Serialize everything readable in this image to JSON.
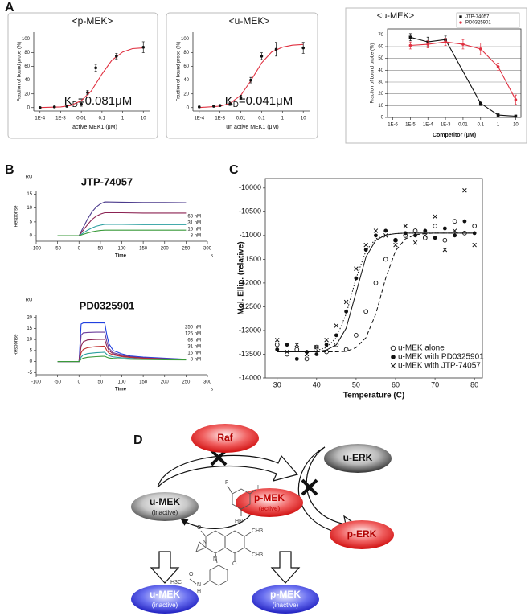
{
  "panels": [
    "A",
    "B",
    "C",
    "D"
  ],
  "chart_data": [
    {
      "type": "scatter",
      "title": "<p-MEK>",
      "x_label": "active MEK1 (μM)",
      "y_label": "Fraction of bound probe (%)",
      "annotation": {
        "main": "K",
        "sub": "D",
        "tail": "=0.081μM"
      },
      "xscale": "log",
      "xlim": [
        5e-05,
        20
      ],
      "xticks": [
        {
          "value": 0.0001,
          "label": "1E-4"
        },
        {
          "value": 0.001,
          "label": "1E-3"
        },
        0.01,
        0.1,
        1,
        10
      ],
      "ylim": [
        -5,
        110
      ],
      "yticks": [
        0,
        20,
        40,
        60,
        80,
        100
      ],
      "grid": false,
      "series": [
        {
          "color": "#e03040",
          "line": true,
          "x": [
            0.0001,
            0.001,
            0.003,
            0.01,
            0.03,
            0.1,
            0.3,
            1,
            3,
            10
          ],
          "values": [
            0,
            1,
            3,
            10,
            24,
            49,
            69,
            81,
            86,
            87
          ]
        },
        {
          "color": "#111111",
          "marker": "filled-circle",
          "x": [
            0.0001,
            0.0005,
            0.002,
            0.01,
            0.02,
            0.05,
            0.5,
            10
          ],
          "values": [
            0,
            1,
            2,
            5,
            22,
            58,
            75,
            88
          ],
          "errors": [
            1,
            1,
            1,
            3,
            3,
            5,
            4,
            8
          ]
        }
      ]
    },
    {
      "type": "scatter",
      "title": "<u-MEK>",
      "x_label": "un active MEK1 (μM)",
      "y_label": "Fraction of bound probe (%)",
      "annotation": {
        "main": "K",
        "sub": "D",
        "tail": "=0.041μM"
      },
      "xscale": "log",
      "xlim": [
        5e-05,
        20
      ],
      "xticks": [
        {
          "value": 0.0001,
          "label": "1E-4"
        },
        {
          "value": 0.001,
          "label": "1E-3"
        },
        0.01,
        0.1,
        1,
        10
      ],
      "ylim": [
        -5,
        110
      ],
      "yticks": [
        0,
        20,
        40,
        60,
        80,
        100
      ],
      "grid": false,
      "series": [
        {
          "color": "#e03040",
          "line": true,
          "x": [
            0.0001,
            0.001,
            0.003,
            0.01,
            0.03,
            0.1,
            0.3,
            1,
            3,
            10
          ],
          "values": [
            0,
            2,
            6,
            18,
            39,
            65,
            81,
            88,
            91,
            92
          ]
        },
        {
          "color": "#111111",
          "marker": "filled-circle",
          "x": [
            0.0001,
            0.0005,
            0.001,
            0.003,
            0.01,
            0.03,
            0.1,
            0.5,
            10
          ],
          "values": [
            1,
            2,
            3,
            5,
            15,
            40,
            75,
            85,
            87
          ],
          "errors": [
            1,
            1,
            1,
            2,
            3,
            4,
            5,
            10,
            8
          ]
        }
      ]
    },
    {
      "type": "scatter",
      "title": "<u-MEK>",
      "x_label": "Competitor (μM)",
      "y_label": "Fraction of bound probe (%)",
      "xscale": "log",
      "xlim": [
        5e-07,
        20
      ],
      "xticks": [
        {
          "value": 1e-06,
          "label": "1E-6"
        },
        {
          "value": 1e-05,
          "label": "1E-5"
        },
        {
          "value": 0.0001,
          "label": "1E-4"
        },
        {
          "value": 0.001,
          "label": "1E-3"
        },
        0.01,
        0.1,
        1,
        10
      ],
      "ylim": [
        0,
        75
      ],
      "yticks": [
        0,
        10,
        20,
        30,
        40,
        50,
        60,
        70
      ],
      "grid": true,
      "legend": "upper right",
      "series": [
        {
          "name": "JTP-74057",
          "color": "#111111",
          "marker": "square",
          "line": true,
          "x": [
            1e-05,
            0.0001,
            0.001,
            0.1,
            1,
            10
          ],
          "values": [
            68,
            64,
            66,
            12,
            2,
            1
          ],
          "errors": [
            3,
            4,
            3,
            2,
            1,
            1
          ]
        },
        {
          "name": "PD0325901",
          "color": "#e03040",
          "marker": "filled-circle",
          "line": true,
          "x": [
            1e-05,
            0.0001,
            0.001,
            0.01,
            0.1,
            1,
            10
          ],
          "values": [
            61,
            62,
            64,
            62,
            58,
            43,
            15
          ],
          "errors": [
            3,
            3,
            3,
            4,
            5,
            3,
            4
          ]
        }
      ]
    },
    {
      "type": "line",
      "title": "JTP-74057",
      "unit_label": "RU",
      "x_label": "Time",
      "x_unit": "s",
      "y_label": "Response",
      "xlim": [
        -100,
        300
      ],
      "xticks": [
        -100,
        -50,
        0,
        50,
        100,
        150,
        200,
        250,
        300
      ],
      "ylim": [
        -2,
        16
      ],
      "yticks": [
        0,
        5,
        10,
        15
      ],
      "legend": "upper right",
      "x": [
        -50,
        0,
        10,
        20,
        30,
        40,
        50,
        60,
        100,
        150,
        200,
        250
      ],
      "series": [
        {
          "name": "63 nM",
          "color": "#4b3a8c",
          "line": true,
          "values": [
            0,
            0,
            3,
            6,
            8.5,
            10.3,
            11.5,
            12.2,
            12.1,
            12,
            12,
            11.9
          ]
        },
        {
          "name": "31 nM",
          "color": "#8b2252",
          "line": true,
          "values": [
            0,
            0,
            2,
            4,
            5.8,
            7,
            7.8,
            8.3,
            8.3,
            8.2,
            8.2,
            8.2
          ]
        },
        {
          "name": "16 nM",
          "color": "#2a9fa0",
          "line": true,
          "values": [
            0,
            0,
            1,
            2,
            2.8,
            3.4,
            3.8,
            4.1,
            4.1,
            4,
            4,
            4
          ]
        },
        {
          "name": "8 nM",
          "color": "#3a9a3a",
          "line": true,
          "values": [
            0,
            0,
            0.5,
            1,
            1.4,
            1.7,
            1.9,
            2,
            2,
            2,
            2,
            2
          ]
        }
      ]
    },
    {
      "type": "line",
      "title": "PD0325901",
      "unit_label": "RU",
      "x_label": "Time",
      "x_unit": "s",
      "y_label": "Response",
      "xlim": [
        -100,
        300
      ],
      "xticks": [
        -100,
        -50,
        0,
        50,
        100,
        150,
        200,
        250,
        300
      ],
      "ylim": [
        -6,
        21
      ],
      "yticks": [
        -5,
        0,
        5,
        10,
        15,
        20
      ],
      "legend": "upper right",
      "x": [
        -50,
        0,
        5,
        10,
        20,
        40,
        60,
        65,
        70,
        80,
        100,
        120,
        150,
        200,
        250
      ],
      "series": [
        {
          "name": "250 nM",
          "color": "#2040e0",
          "line": true,
          "values": [
            0,
            0,
            17,
            17.5,
            17.5,
            17.5,
            17.5,
            12,
            8,
            5,
            3.5,
            2.5,
            2,
            1.5,
            1
          ]
        },
        {
          "name": "125 nM",
          "color": "#6a3d9a",
          "line": true,
          "values": [
            0,
            0,
            12,
            13,
            13.2,
            13.3,
            13.3,
            9,
            6,
            4,
            3,
            2.2,
            1.7,
            1.3,
            1
          ]
        },
        {
          "name": "63 nM",
          "color": "#8b2252",
          "line": true,
          "values": [
            0,
            0,
            7,
            9,
            9.8,
            10,
            10.1,
            7,
            5,
            3.5,
            2.5,
            2,
            1.6,
            1.2,
            1
          ]
        },
        {
          "name": "31 nM",
          "color": "#c03030",
          "line": true,
          "values": [
            0,
            0,
            4,
            5.5,
            6.3,
            6.8,
            7,
            5,
            3.8,
            3,
            2.2,
            1.8,
            1.4,
            1.1,
            0.9
          ]
        },
        {
          "name": "16 nM",
          "color": "#2a9fa0",
          "line": true,
          "values": [
            0,
            0,
            2,
            3,
            3.6,
            4,
            4.2,
            3.2,
            2.6,
            2.1,
            1.7,
            1.4,
            1.1,
            0.9,
            0.8
          ]
        },
        {
          "name": "8 nM",
          "color": "#3a9a3a",
          "line": true,
          "values": [
            0,
            0,
            1,
            1.5,
            1.9,
            2.2,
            2.4,
            1.9,
            1.6,
            1.4,
            1.2,
            1,
            0.9,
            0.8,
            0.7
          ]
        }
      ]
    },
    {
      "type": "scatter",
      "x_label": "Temperature (C)",
      "y_label": "Mol. Ellip. (relative)",
      "xlim": [
        27,
        82
      ],
      "xticks": [
        30,
        40,
        50,
        60,
        70,
        80
      ],
      "ylim": [
        -14000,
        -9800
      ],
      "yticks": [
        -10000,
        -10500,
        -11000,
        -11500,
        -12000,
        -12500,
        -13000,
        -13500,
        -14000
      ],
      "legend": "lower right",
      "x": [
        30,
        32.5,
        35,
        37.5,
        40,
        42.5,
        45,
        47.5,
        50,
        52.5,
        55,
        57.5,
        60,
        62.5,
        65,
        67.5,
        70,
        72.5,
        75,
        77.5,
        80
      ],
      "series": [
        {
          "name": "u-MEK alone",
          "color": "#111111",
          "marker": "open-circle",
          "values": [
            -13300,
            -13500,
            -13400,
            -13600,
            -13350,
            -13450,
            -13300,
            -13400,
            -13100,
            -12600,
            -12000,
            -11500,
            -11100,
            -11000,
            -10900,
            -11050,
            -10800,
            -11100,
            -10700,
            -10950,
            -10800
          ]
        },
        {
          "name": "u-MEK with PD0325901",
          "color": "#111111",
          "marker": "filled-circle",
          "values": [
            -13400,
            -13300,
            -13600,
            -13450,
            -13500,
            -13300,
            -13100,
            -12600,
            -11900,
            -11300,
            -11000,
            -10900,
            -11100,
            -10950,
            -11000,
            -10900,
            -11050,
            -10850,
            -11000,
            -10700,
            -10950
          ]
        },
        {
          "name": "u-MEK with JTP-74057",
          "color": "#111111",
          "marker": "cross",
          "values": [
            -13200,
            -13450,
            -13300,
            -13500,
            -13350,
            -13200,
            -12900,
            -12400,
            -11700,
            -11200,
            -10900,
            -11000,
            -11200,
            -10800,
            -11150,
            -11000,
            -10600,
            -11300,
            -10900,
            -10050,
            -11200
          ]
        },
        {
          "color": "#111111",
          "line": true,
          "line_style": "dashed",
          "values": [
            -13450,
            -13450,
            -13450,
            -13450,
            -13450,
            -13450,
            -13450,
            -13440,
            -13360,
            -13150,
            -12650,
            -11900,
            -11320,
            -11070,
            -10985,
            -10960,
            -10950,
            -10950,
            -10950,
            -10950,
            -10950
          ]
        },
        {
          "color": "#111111",
          "line": true,
          "line_style": "solid",
          "values": [
            -13450,
            -13450,
            -13450,
            -13450,
            -13450,
            -13410,
            -13300,
            -12950,
            -12200,
            -11450,
            -11100,
            -10990,
            -10960,
            -10950,
            -10950,
            -10950,
            -10950,
            -10950,
            -10950,
            -10950,
            -10950
          ]
        },
        {
          "color": "#111111",
          "line": true,
          "line_style": "dotted",
          "values": [
            -13450,
            -13450,
            -13450,
            -13450,
            -13420,
            -13360,
            -13150,
            -12650,
            -11900,
            -11320,
            -11070,
            -10985,
            -10960,
            -10950,
            -10950,
            -10950,
            -10950,
            -10950,
            -10950,
            -10950,
            -10950
          ]
        }
      ]
    }
  ],
  "diagram": {
    "nodes": [
      {
        "label": "Raf"
      },
      {
        "label": "u-ERK"
      },
      {
        "label": "u-MEK",
        "sub": "(inactive)"
      },
      {
        "label": "p-MEK",
        "sub": "(active)"
      },
      {
        "label": "p-ERK"
      },
      {
        "label": "u-MEK",
        "sub": "(inactive)"
      },
      {
        "label": "p-MEK",
        "sub": "(inactive)"
      }
    ],
    "structure_labels": [
      "F",
      "I",
      "HN",
      "CH3",
      "O",
      "N",
      "N",
      "O",
      "CH3",
      "O",
      "H3C",
      "N",
      "H"
    ]
  }
}
